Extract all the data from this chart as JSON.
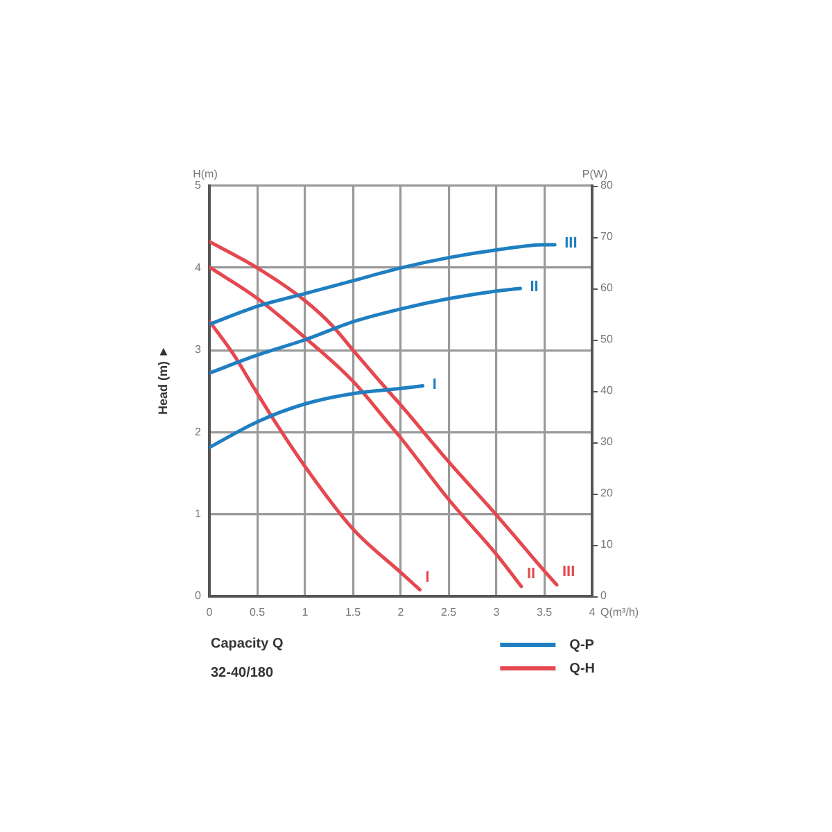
{
  "chart_data": {
    "type": "line",
    "xlabel": "Q(m³/h)",
    "ylabel": "H(m)",
    "y2label": "P(W)",
    "xlim": [
      0,
      4
    ],
    "xticks": [
      0,
      0.5,
      1,
      1.5,
      2,
      2.5,
      3,
      3.5,
      4
    ],
    "ylim": [
      0,
      5
    ],
    "yticks": [
      0,
      1,
      2,
      3,
      4,
      5
    ],
    "y2lim": [
      0,
      80
    ],
    "y2ticks": [
      0,
      10,
      20,
      30,
      40,
      50,
      60,
      70,
      80
    ],
    "grid": true,
    "legend": "bottom right",
    "series": [
      {
        "name": "Q-P",
        "color": "#1f7fc1",
        "axis": "y2",
        "x": [
          0,
          0.5,
          1,
          1.5,
          2,
          2.23
        ],
        "values": [
          29,
          34,
          37.5,
          39.5,
          40.5,
          41
        ]
      },
      {
        "color": "#1f7fc1",
        "axis": "y2",
        "x": [
          0,
          0.5,
          1,
          1.5,
          2,
          2.5,
          3,
          3.25
        ],
        "values": [
          43.5,
          47,
          50,
          53.5,
          56,
          58,
          59.5,
          60
        ]
      },
      {
        "color": "#1f7fc1",
        "axis": "y2",
        "x": [
          0,
          0.5,
          1,
          1.5,
          2,
          2.5,
          3,
          3.5,
          3.61
        ],
        "values": [
          53,
          56.5,
          59,
          61.5,
          64,
          66,
          67.5,
          68.5,
          68.5
        ]
      },
      {
        "name": "Q-H",
        "color": "#e5484f",
        "x": [
          0,
          0.25,
          0.47,
          0.64,
          1,
          1.5,
          2,
          2.2
        ],
        "values": [
          3.35,
          2.95,
          2.53,
          2.21,
          1.58,
          0.82,
          0.29,
          0.08
        ]
      },
      {
        "color": "#e5484f",
        "x": [
          0,
          0.5,
          1,
          1.5,
          1.87,
          2,
          2.5,
          3,
          3.26
        ],
        "values": [
          4.01,
          3.63,
          3.15,
          2.62,
          2.11,
          1.93,
          1.18,
          0.51,
          0.12
        ]
      },
      {
        "color": "#e5484f",
        "x": [
          0,
          0.5,
          1,
          1.29,
          1.5,
          1.87,
          2,
          2.5,
          3,
          3.5,
          3.63
        ],
        "values": [
          4.32,
          4.0,
          3.6,
          3.29,
          3.0,
          2.5,
          2.33,
          1.64,
          0.99,
          0.31,
          0.14
        ]
      }
    ],
    "annotations": [
      "Head (m) ►",
      "Capacity Q",
      "32-40/180",
      "I",
      "II",
      "III",
      "I",
      "II",
      "III"
    ]
  }
}
